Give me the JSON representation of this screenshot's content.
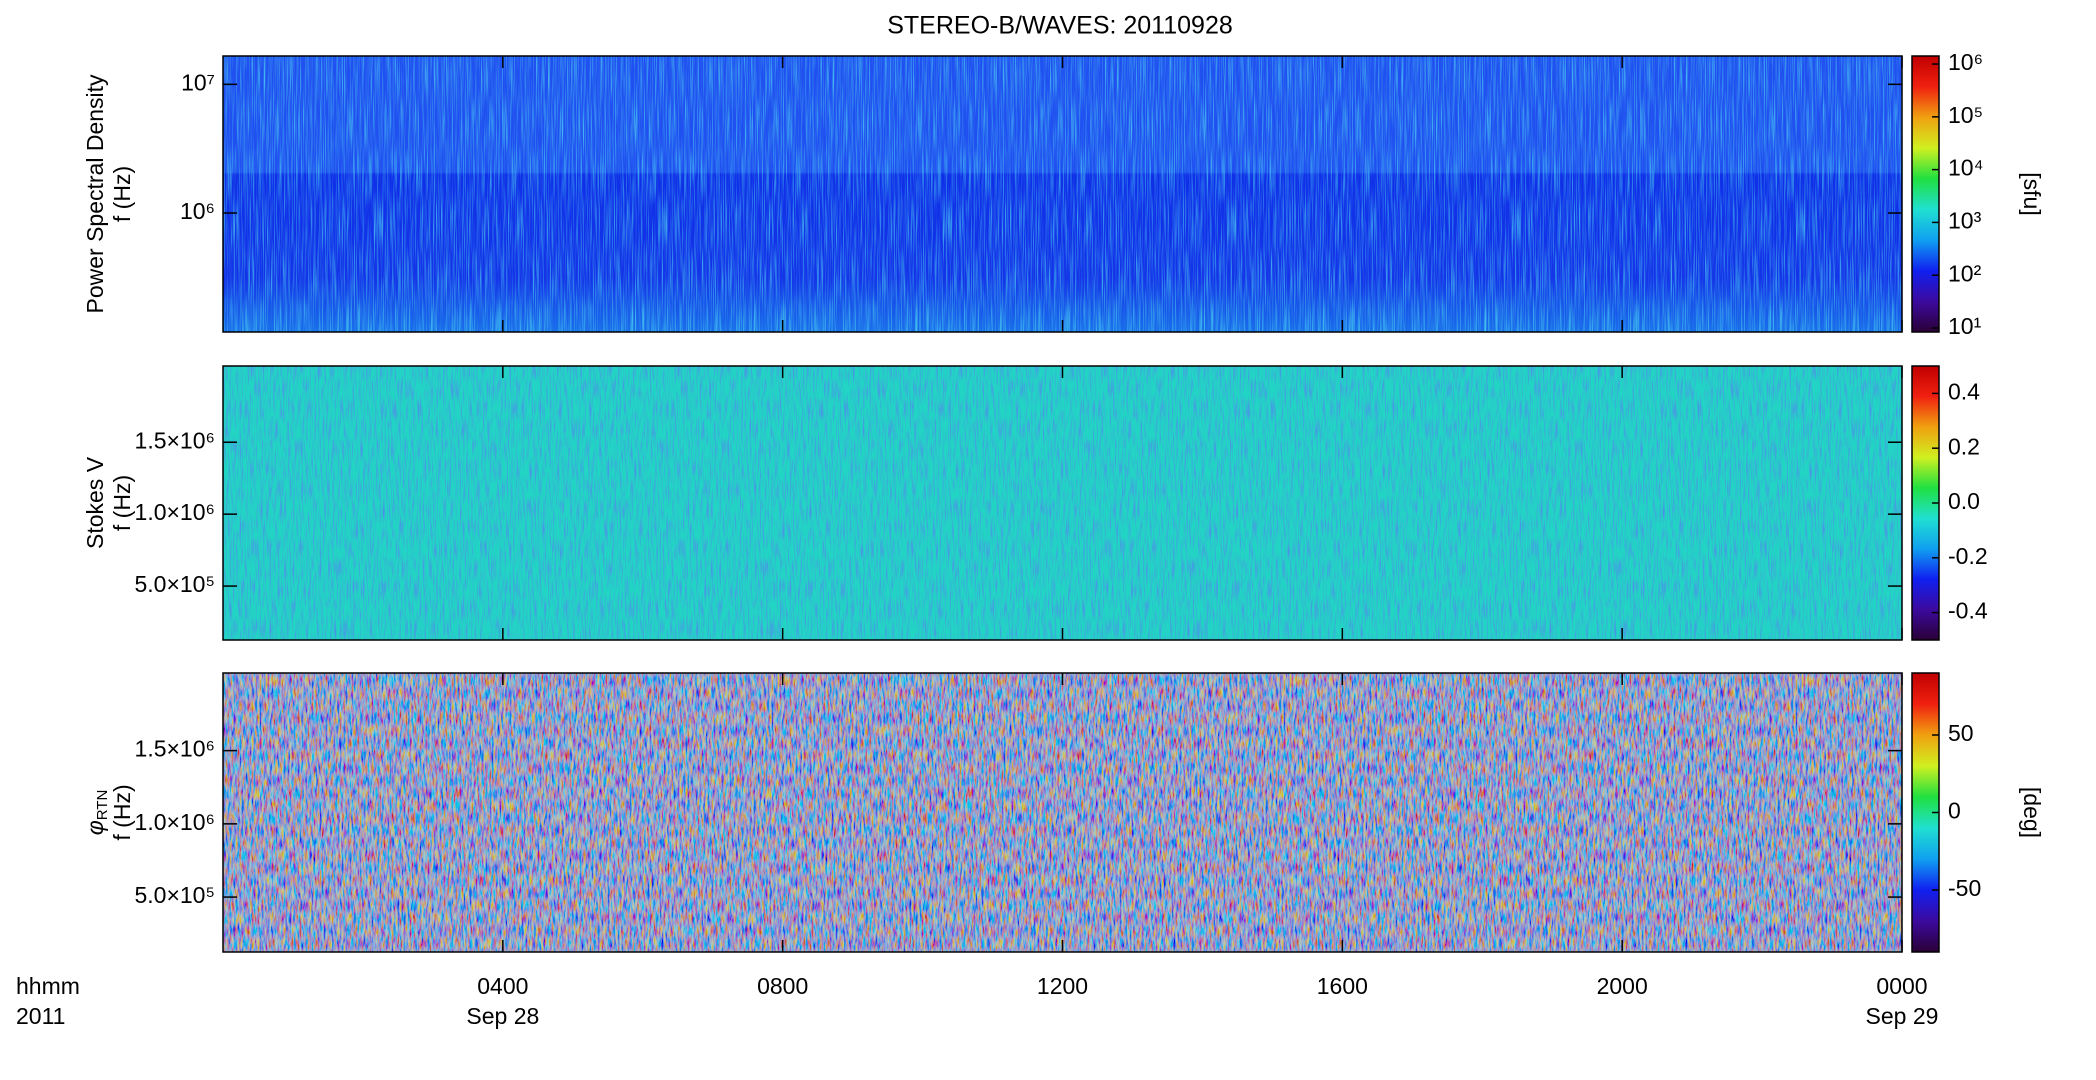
{
  "title": "STEREO-B/WAVES: 20110928",
  "colormap": [
    "#2a0036",
    "#3c0a9e",
    "#1020f0",
    "#10a0f0",
    "#20e0d0",
    "#20e040",
    "#d0f020",
    "#f0a010",
    "#f02010",
    "#c00000"
  ],
  "chart_data": [
    {
      "type": "heatmap",
      "ylabel": [
        "Power Spectral Density",
        "f (Hz)"
      ],
      "ylog": true,
      "ylim": [
        119000,
        16600000
      ],
      "yticks": [
        {
          "value": 1000000,
          "label": "10⁶"
        },
        {
          "value": 10000000,
          "label": "10⁷"
        }
      ],
      "colorbar": {
        "log": true,
        "lim": [
          8.4,
          1420000
        ],
        "label": "[sfu]",
        "ticks": [
          {
            "value": 10,
            "label": "10¹"
          },
          {
            "value": 100,
            "label": "10²"
          },
          {
            "value": 1000,
            "label": "10³"
          },
          {
            "value": 10000,
            "label": "10⁴"
          },
          {
            "value": 100000,
            "label": "10⁵"
          },
          {
            "value": 1000000,
            "label": "10⁶"
          }
        ]
      }
    },
    {
      "type": "heatmap",
      "ylabel": [
        "Stokes V",
        "f (Hz)"
      ],
      "ylog": false,
      "ylim": [
        125000,
        2030000
      ],
      "yticks": [
        {
          "value": 500000,
          "label": "5.0×10⁵"
        },
        {
          "value": 1000000,
          "label": "1.0×10⁶"
        },
        {
          "value": 1500000,
          "label": "1.5×10⁶"
        }
      ],
      "colorbar": {
        "log": false,
        "lim": [
          -0.5,
          0.5
        ],
        "ticks": [
          {
            "value": -0.4,
            "label": "-0.4"
          },
          {
            "value": -0.2,
            "label": "-0.2"
          },
          {
            "value": 0,
            "label": "0.0"
          },
          {
            "value": 0.2,
            "label": "0.2"
          },
          {
            "value": 0.4,
            "label": "0.4"
          }
        ]
      }
    },
    {
      "type": "heatmap",
      "ylabel_symbol": "φ",
      "ylabel_subscript": "RTN",
      "ylabel": [
        "f (Hz)"
      ],
      "ylog": false,
      "ylim": [
        125000,
        2030000
      ],
      "yticks": [
        {
          "value": 500000,
          "label": "5.0×10⁵"
        },
        {
          "value": 1000000,
          "label": "1.0×10⁶"
        },
        {
          "value": 1500000,
          "label": "1.5×10⁶"
        }
      ],
      "colorbar": {
        "log": false,
        "lim": [
          -90,
          90
        ],
        "label": "[deg]",
        "ticks": [
          -50,
          0,
          50
        ]
      },
      "xlim": [
        0,
        24
      ],
      "xticks": [
        {
          "value": 4,
          "label": "0400"
        },
        {
          "value": 8,
          "label": "0800"
        },
        {
          "value": 12,
          "label": "1200"
        },
        {
          "value": 16,
          "label": "1600"
        },
        {
          "value": 20,
          "label": "2000"
        },
        {
          "value": 24,
          "label": "0000"
        }
      ],
      "xtick_dates": [
        {
          "value": 4,
          "label": "Sep 28"
        },
        {
          "value": 24,
          "label": "Sep 29"
        }
      ],
      "xlabel_lines": [
        "hhmm",
        "2011"
      ]
    }
  ]
}
